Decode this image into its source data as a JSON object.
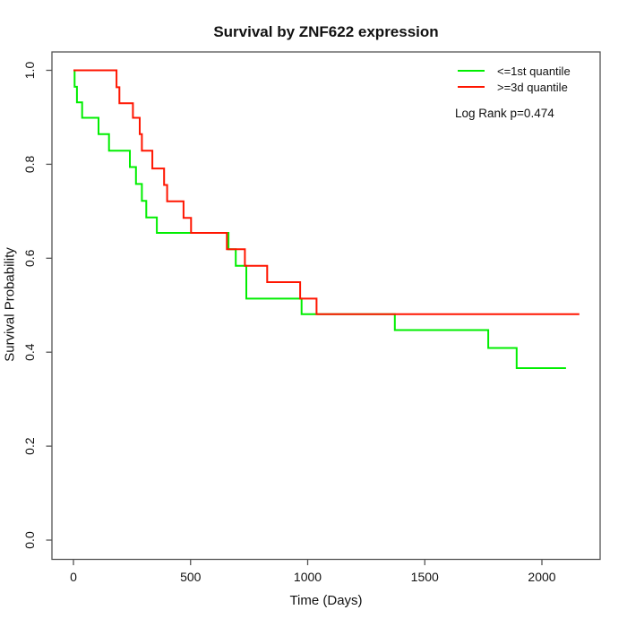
{
  "figure": {
    "background": "#ffffff",
    "text_color": "#111111",
    "frame_color": "#555555"
  },
  "chart_data": {
    "type": "line",
    "subtype": "kaplan-meier-step",
    "title": "Survival by ZNF622 expression",
    "xlabel": "Time (Days)",
    "ylabel": "Survival Probability",
    "xlim": [
      0,
      2248
    ],
    "ylim": [
      0.0,
      1.0
    ],
    "xticks": [
      0,
      500,
      1000,
      1500,
      2000
    ],
    "yticks": [
      0.0,
      0.2,
      0.4,
      0.6,
      0.8,
      1.0
    ],
    "ytick_labels": [
      "0.0",
      "0.2",
      "0.4",
      "0.6",
      "0.8",
      "1.0"
    ],
    "grid": false,
    "legend_position": "top-right",
    "annotation": "Log Rank p=0.474",
    "series": [
      {
        "name": "<=1st quantile",
        "color": "#00ee00",
        "points": [
          [
            0,
            1.0
          ],
          [
            5,
            0.965
          ],
          [
            15,
            0.932
          ],
          [
            37,
            0.899
          ],
          [
            107,
            0.864
          ],
          [
            152,
            0.829
          ],
          [
            241,
            0.794
          ],
          [
            267,
            0.758
          ],
          [
            292,
            0.722
          ],
          [
            311,
            0.687
          ],
          [
            356,
            0.654
          ],
          [
            662,
            0.619
          ],
          [
            693,
            0.584
          ],
          [
            738,
            0.514
          ],
          [
            974,
            0.481
          ],
          [
            1372,
            0.447
          ],
          [
            1771,
            0.409
          ],
          [
            1892,
            0.366
          ],
          [
            2103,
            0.366
          ]
        ]
      },
      {
        "name": ">=3d quantile",
        "color": "#ff1500",
        "points": [
          [
            0,
            1.0
          ],
          [
            184,
            0.964
          ],
          [
            196,
            0.93
          ],
          [
            254,
            0.899
          ],
          [
            283,
            0.864
          ],
          [
            292,
            0.829
          ],
          [
            337,
            0.791
          ],
          [
            387,
            0.756
          ],
          [
            400,
            0.721
          ],
          [
            470,
            0.686
          ],
          [
            502,
            0.654
          ],
          [
            655,
            0.619
          ],
          [
            732,
            0.584
          ],
          [
            827,
            0.549
          ],
          [
            968,
            0.514
          ],
          [
            1038,
            0.481
          ],
          [
            2160,
            0.481
          ]
        ]
      }
    ]
  }
}
